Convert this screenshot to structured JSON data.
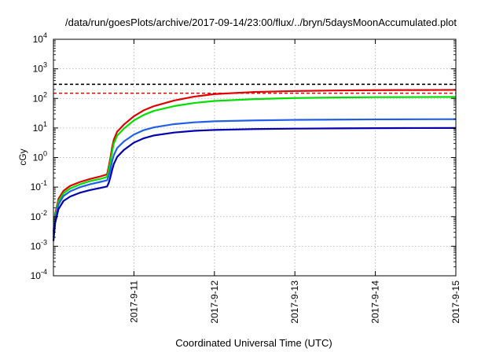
{
  "chart_data": {
    "type": "line",
    "title": "/data/run/goesPlots/archive/2017-09-14/23:00/flux/../bryn/5daysMoonAccumulated.plot",
    "xlabel": "Coordinated Universal Time (UTC)",
    "ylabel": "cGy",
    "yscale": "log",
    "ylim": [
      0.0001,
      10000
    ],
    "y_ticks": [
      {
        "base": "10",
        "exp": "-4",
        "value": 0.0001
      },
      {
        "base": "10",
        "exp": "-3",
        "value": 0.001
      },
      {
        "base": "10",
        "exp": "-2",
        "value": 0.01
      },
      {
        "base": "10",
        "exp": "-1",
        "value": 0.1
      },
      {
        "base": "10",
        "exp": "0",
        "value": 1
      },
      {
        "base": "10",
        "exp": "1",
        "value": 10
      },
      {
        "base": "10",
        "exp": "2",
        "value": 100
      },
      {
        "base": "10",
        "exp": "3",
        "value": 1000
      },
      {
        "base": "10",
        "exp": "4",
        "value": 10000
      }
    ],
    "xlim": [
      "2017-09-10T00:00",
      "2017-09-15T00:00"
    ],
    "x_ticks": [
      {
        "label": "2017-9-11",
        "value": "2017-09-11T00:00"
      },
      {
        "label": "2017-9-12",
        "value": "2017-09-12T00:00"
      },
      {
        "label": "2017-9-13",
        "value": "2017-09-13T00:00"
      },
      {
        "label": "2017-9-14",
        "value": "2017-09-14T00:00"
      },
      {
        "label": "2017-9-15",
        "value": "2017-09-15T00:00"
      }
    ],
    "grid": true,
    "legend": "none",
    "thresholds": [
      {
        "value": 300,
        "color": "#000000",
        "style": "dashed"
      },
      {
        "value": 150,
        "color": "#e00000",
        "style": "dashed"
      }
    ],
    "series": [
      {
        "color": "#e00000",
        "points": [
          [
            "2017-09-10T00:00",
            0.003
          ],
          [
            "2017-09-10T00:30",
            0.012
          ],
          [
            "2017-09-10T01:30",
            0.04
          ],
          [
            "2017-09-10T03:00",
            0.075
          ],
          [
            "2017-09-10T05:00",
            0.11
          ],
          [
            "2017-09-10T08:00",
            0.15
          ],
          [
            "2017-09-10T11:00",
            0.19
          ],
          [
            "2017-09-10T14:00",
            0.23
          ],
          [
            "2017-09-10T16:00",
            0.27
          ],
          [
            "2017-09-10T16:30",
            0.5
          ],
          [
            "2017-09-10T17:00",
            1.0
          ],
          [
            "2017-09-10T17:30",
            2.2
          ],
          [
            "2017-09-10T18:00",
            4.0
          ],
          [
            "2017-09-10T19:00",
            7.5
          ],
          [
            "2017-09-10T21:00",
            13
          ],
          [
            "2017-09-11T00:00",
            25
          ],
          [
            "2017-09-11T03:00",
            40
          ],
          [
            "2017-09-11T06:00",
            55
          ],
          [
            "2017-09-11T12:00",
            85
          ],
          [
            "2017-09-11T18:00",
            115
          ],
          [
            "2017-09-12T00:00",
            140
          ],
          [
            "2017-09-12T12:00",
            165
          ],
          [
            "2017-09-13T00:00",
            178
          ],
          [
            "2017-09-13T12:00",
            185
          ],
          [
            "2017-09-14T00:00",
            190
          ],
          [
            "2017-09-14T12:00",
            192
          ],
          [
            "2017-09-15T00:00",
            194
          ]
        ]
      },
      {
        "color": "#00e000",
        "points": [
          [
            "2017-09-10T00:00",
            0.0025
          ],
          [
            "2017-09-10T00:30",
            0.01
          ],
          [
            "2017-09-10T01:30",
            0.033
          ],
          [
            "2017-09-10T03:00",
            0.062
          ],
          [
            "2017-09-10T05:00",
            0.09
          ],
          [
            "2017-09-10T08:00",
            0.125
          ],
          [
            "2017-09-10T11:00",
            0.16
          ],
          [
            "2017-09-10T14:00",
            0.19
          ],
          [
            "2017-09-10T16:00",
            0.22
          ],
          [
            "2017-09-10T16:30",
            0.38
          ],
          [
            "2017-09-10T17:00",
            0.75
          ],
          [
            "2017-09-10T17:30",
            1.6
          ],
          [
            "2017-09-10T18:00",
            3.0
          ],
          [
            "2017-09-10T19:00",
            5.5
          ],
          [
            "2017-09-10T21:00",
            9.5
          ],
          [
            "2017-09-11T00:00",
            18
          ],
          [
            "2017-09-11T03:00",
            28
          ],
          [
            "2017-09-11T06:00",
            38
          ],
          [
            "2017-09-11T12:00",
            55
          ],
          [
            "2017-09-11T18:00",
            70
          ],
          [
            "2017-09-12T00:00",
            82
          ],
          [
            "2017-09-12T12:00",
            95
          ],
          [
            "2017-09-13T00:00",
            103
          ],
          [
            "2017-09-13T12:00",
            107
          ],
          [
            "2017-09-14T00:00",
            110
          ],
          [
            "2017-09-14T12:00",
            111
          ],
          [
            "2017-09-15T00:00",
            112
          ]
        ]
      },
      {
        "color": "#2060e8",
        "points": [
          [
            "2017-09-10T00:00",
            0.002
          ],
          [
            "2017-09-10T00:30",
            0.008
          ],
          [
            "2017-09-10T01:30",
            0.026
          ],
          [
            "2017-09-10T03:00",
            0.05
          ],
          [
            "2017-09-10T05:00",
            0.072
          ],
          [
            "2017-09-10T08:00",
            0.1
          ],
          [
            "2017-09-10T11:00",
            0.125
          ],
          [
            "2017-09-10T14:00",
            0.15
          ],
          [
            "2017-09-10T16:00",
            0.17
          ],
          [
            "2017-09-10T16:30",
            0.24
          ],
          [
            "2017-09-10T17:00",
            0.4
          ],
          [
            "2017-09-10T17:30",
            0.75
          ],
          [
            "2017-09-10T18:00",
            1.2
          ],
          [
            "2017-09-10T19:00",
            2.1
          ],
          [
            "2017-09-10T21:00",
            3.5
          ],
          [
            "2017-09-11T00:00",
            6.0
          ],
          [
            "2017-09-11T03:00",
            8.5
          ],
          [
            "2017-09-11T06:00",
            10.5
          ],
          [
            "2017-09-11T12:00",
            13.5
          ],
          [
            "2017-09-11T18:00",
            15.5
          ],
          [
            "2017-09-12T00:00",
            16.8
          ],
          [
            "2017-09-12T12:00",
            18
          ],
          [
            "2017-09-13T00:00",
            18.8
          ],
          [
            "2017-09-13T12:00",
            19.2
          ],
          [
            "2017-09-14T00:00",
            19.5
          ],
          [
            "2017-09-14T12:00",
            19.7
          ],
          [
            "2017-09-15T00:00",
            19.8
          ]
        ]
      },
      {
        "color": "#0000b0",
        "points": [
          [
            "2017-09-10T00:00",
            0.0015
          ],
          [
            "2017-09-10T00:30",
            0.006
          ],
          [
            "2017-09-10T01:30",
            0.018
          ],
          [
            "2017-09-10T03:00",
            0.034
          ],
          [
            "2017-09-10T05:00",
            0.048
          ],
          [
            "2017-09-10T08:00",
            0.065
          ],
          [
            "2017-09-10T11:00",
            0.08
          ],
          [
            "2017-09-10T14:00",
            0.094
          ],
          [
            "2017-09-10T16:00",
            0.105
          ],
          [
            "2017-09-10T16:30",
            0.14
          ],
          [
            "2017-09-10T17:00",
            0.22
          ],
          [
            "2017-09-10T17:30",
            0.38
          ],
          [
            "2017-09-10T18:00",
            0.6
          ],
          [
            "2017-09-10T19:00",
            1.05
          ],
          [
            "2017-09-10T21:00",
            1.8
          ],
          [
            "2017-09-11T00:00",
            3.2
          ],
          [
            "2017-09-11T03:00",
            4.5
          ],
          [
            "2017-09-11T06:00",
            5.6
          ],
          [
            "2017-09-11T12:00",
            7.0
          ],
          [
            "2017-09-11T18:00",
            8.0
          ],
          [
            "2017-09-12T00:00",
            8.6
          ],
          [
            "2017-09-12T12:00",
            9.2
          ],
          [
            "2017-09-13T00:00",
            9.5
          ],
          [
            "2017-09-13T12:00",
            9.7
          ],
          [
            "2017-09-14T00:00",
            9.85
          ],
          [
            "2017-09-14T12:00",
            9.95
          ],
          [
            "2017-09-15T00:00",
            10.0
          ]
        ]
      }
    ]
  }
}
